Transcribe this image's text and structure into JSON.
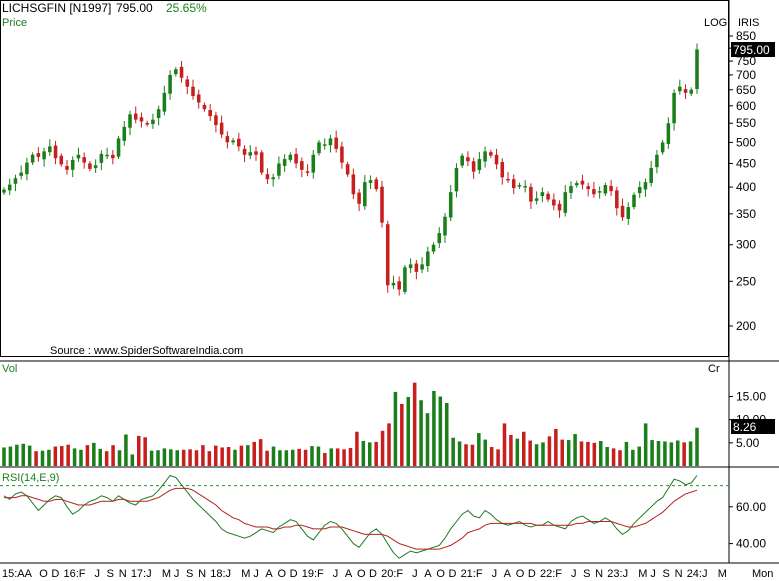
{
  "header": {
    "symbol": "LICHSGFIN [N1997]",
    "price": "795.00",
    "change": "25.65%",
    "price_label": "Price",
    "log_label": "LOG",
    "iris_label": "IRIS",
    "last_price_tag": "795.00",
    "source": "Source : www.SpiderSoftwareIndia.com"
  },
  "volume_panel": {
    "label": "Vol",
    "unit": "Cr",
    "last_tag": "8.26"
  },
  "rsi_panel": {
    "label": "RSI(14,E,9)"
  },
  "x_axis": {
    "labels": [
      "15:AA",
      "O",
      "D",
      "16:F",
      "J",
      "S",
      "N",
      "17:J",
      "M",
      "J",
      "S",
      "N",
      "18:J",
      "M",
      "J",
      "A",
      "O",
      "D",
      "19:F",
      "J",
      "A",
      "O",
      "D",
      "20:F",
      "J",
      "A",
      "O",
      "D",
      "21:F",
      "J",
      "A",
      "O",
      "D",
      "22:F",
      "J",
      "S",
      "N",
      "23:J",
      "M",
      "J",
      "S",
      "N",
      "24:J",
      "M"
    ],
    "period_label": "Mon"
  },
  "colors": {
    "up": "#1a7f1a",
    "down": "#c81e1e",
    "rsi_line": "#1f7a1f",
    "rsi_signal": "#b22222",
    "text_green": "#1a7f1a",
    "tag_bg": "#000000"
  },
  "chart_data": [
    {
      "type": "candlestick",
      "panel": "price",
      "y_scale": "log",
      "ylim": [
        180,
        850
      ],
      "y_ticks": [
        850,
        800,
        750,
        700,
        650,
        600,
        550,
        500,
        450,
        400,
        350,
        300,
        250,
        200
      ],
      "closes": [
        395,
        405,
        418,
        430,
        452,
        470,
        465,
        478,
        490,
        462,
        448,
        436,
        458,
        470,
        452,
        438,
        446,
        472,
        470,
        462,
        510,
        540,
        575,
        560,
        555,
        548,
        560,
        590,
        640,
        700,
        720,
        690,
        660,
        630,
        610,
        590,
        570,
        545,
        520,
        500,
        505,
        490,
        470,
        476,
        470,
        430,
        416,
        420,
        450,
        460,
        470,
        450,
        436,
        430,
        470,
        500,
        495,
        510,
        484,
        452,
        426,
        386,
        368,
        410,
        414,
        396,
        335,
        245,
        248,
        240,
        268,
        272,
        262,
        272,
        290,
        300,
        318,
        345,
        390,
        440,
        468,
        455,
        432,
        460,
        478,
        468,
        448,
        420,
        416,
        398,
        404,
        402,
        372,
        378,
        390,
        376,
        365,
        356,
        390,
        402,
        408,
        405,
        396,
        386,
        392,
        404,
        392,
        360,
        344,
        362,
        385,
        400,
        410,
        440,
        470,
        500,
        550,
        640,
        660,
        640,
        650,
        795
      ]
    },
    {
      "type": "bar",
      "panel": "volume",
      "unit": "Cr",
      "ylim": [
        0,
        19
      ],
      "y_ticks": [
        5,
        10,
        15
      ],
      "y_tick_labels": [
        "5.00",
        "10.00",
        "15.00"
      ],
      "values": [
        4,
        4.2,
        4.6,
        4.8,
        4.4,
        3.2,
        3.3,
        3.5,
        4.2,
        4.3,
        4.6,
        3.8,
        3.5,
        4.5,
        5,
        3.7,
        3.2,
        4.5,
        3.4,
        6.8,
        2.5,
        6.5,
        6.2,
        3.3,
        3.4,
        3.8,
        3.6,
        3.4,
        3.5,
        3.6,
        3.4,
        4.5,
        3.2,
        4.4,
        4,
        4.1,
        3.5,
        4.4,
        4.5,
        5.2,
        5.8,
        3.3,
        4.2,
        3.4,
        3.4,
        3.5,
        3.7,
        3.5,
        4.3,
        4.2,
        2.8,
        3.8,
        3.8,
        3.6,
        3.9,
        7.4,
        5.4,
        5.1,
        5.2,
        7.6,
        9.2,
        16,
        13.4,
        14.9,
        18,
        14.2,
        11.4,
        16.2,
        15,
        13.6,
        6.1,
        5.3,
        4.7,
        4.6,
        7.1,
        5.7,
        4.1,
        3.6,
        9.2,
        6.7,
        5.9,
        7.4,
        5.5,
        4.7,
        5.1,
        6.4,
        8,
        5.7,
        5.6,
        6.9,
        5.3,
        5.2,
        5,
        5.4,
        4.1,
        3.8,
        3.4,
        5.2,
        3.5,
        4.2,
        9.2,
        5.6,
        5.4,
        5.3,
        5.1,
        5.5,
        5.1,
        5.3,
        8.26
      ]
    },
    {
      "type": "line",
      "panel": "rsi",
      "ylim": [
        30,
        80
      ],
      "y_ticks": [
        40,
        60
      ],
      "y_tick_labels": [
        "40.00",
        "60.00"
      ],
      "reference_line": 71.5,
      "series": [
        {
          "values": [
            66,
            64,
            67,
            68,
            66,
            62,
            58,
            61,
            64,
            66,
            65,
            60,
            56,
            58,
            61,
            63,
            64,
            66,
            65,
            63,
            66,
            64,
            62,
            61,
            64,
            65,
            66,
            69,
            73,
            77,
            76,
            72,
            68,
            64,
            61,
            58,
            55,
            52,
            48,
            46,
            45,
            44,
            43,
            44,
            46,
            48,
            47,
            46,
            49,
            51,
            53,
            52,
            48,
            44,
            42,
            46,
            50,
            52,
            51,
            48,
            44,
            40,
            38,
            42,
            46,
            48,
            45,
            40,
            35,
            32,
            34,
            36,
            35,
            36,
            37,
            38,
            39,
            43,
            48,
            52,
            56,
            58,
            55,
            54,
            58,
            56,
            53,
            51,
            50,
            51,
            52,
            50,
            49,
            50,
            50,
            52,
            50,
            49,
            48,
            52,
            54,
            55,
            53,
            51,
            52,
            54,
            52,
            48,
            45,
            47,
            51,
            54,
            57,
            60,
            63,
            65,
            70,
            75,
            74,
            72,
            73,
            77
          ]
        },
        {
          "values": [
            65,
            65,
            65,
            66,
            66,
            65,
            64,
            63,
            63,
            64,
            64,
            63,
            62,
            61,
            61,
            61,
            62,
            63,
            63,
            63,
            64,
            64,
            63,
            63,
            63,
            63,
            64,
            65,
            67,
            69,
            70,
            70,
            70,
            69,
            67,
            65,
            63,
            61,
            58,
            56,
            54,
            53,
            51,
            50,
            49,
            49,
            49,
            48,
            48,
            49,
            49,
            50,
            50,
            49,
            48,
            48,
            48,
            49,
            49,
            49,
            48,
            47,
            46,
            45,
            45,
            45,
            45,
            44,
            42,
            40,
            39,
            38,
            37,
            37,
            37,
            37,
            37,
            38,
            39,
            41,
            43,
            46,
            47,
            48,
            50,
            51,
            51,
            51,
            51,
            51,
            51,
            51,
            51,
            50,
            50,
            50,
            50,
            50,
            50,
            50,
            51,
            51,
            52,
            52,
            52,
            52,
            52,
            51,
            50,
            49,
            49,
            50,
            51,
            53,
            55,
            57,
            60,
            63,
            65,
            67,
            68,
            69
          ]
        }
      ]
    }
  ]
}
